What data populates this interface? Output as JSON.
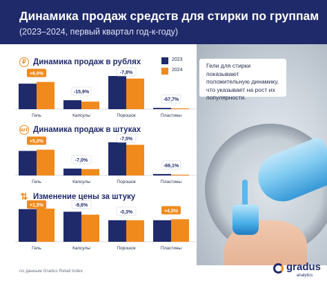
{
  "header": {
    "title": "Динамика продаж средств для стирки по группам",
    "subtitle": "(2023–2024, первый квартал год-к-году)"
  },
  "legend": {
    "items": [
      "2023",
      "2024"
    ]
  },
  "callout": {
    "text": "Гели для стирки показывают положительную динамику, что указывает на рост их популярности."
  },
  "colors": {
    "navy": "#1f2a6b",
    "orange": "#f08a1c",
    "label_orange": "#f08a1c",
    "label_navy": "#1f2a6b"
  },
  "chart_data": [
    {
      "type": "bar",
      "title": "Динамика продаж в рублях",
      "icon": "ruble-icon",
      "categories": [
        "Гель",
        "Капсулы",
        "Порошок",
        "Пластины"
      ],
      "series": [
        {
          "name": "2023",
          "values": [
            100,
            35,
            130,
            5
          ]
        },
        {
          "name": "2024",
          "values": [
            106.6,
            29.5,
            120,
            1.6
          ]
        }
      ],
      "changes": [
        "+6,6%",
        "-15,9%",
        "-7,8%",
        "-67,7%"
      ],
      "change_positive": [
        true,
        false,
        false,
        false
      ]
    },
    {
      "type": "bar",
      "title": "Динамика продаж в штуках",
      "icon": "pieces-icon",
      "categories": [
        "Гель",
        "Капсулы",
        "Порошок",
        "Пластины"
      ],
      "series": [
        {
          "name": "2023",
          "values": [
            100,
            28,
            135,
            6
          ]
        },
        {
          "name": "2024",
          "values": [
            105,
            26,
            125,
            1.9
          ]
        }
      ],
      "changes": [
        "+5,0%",
        "-7,0%",
        "-7,5%",
        "-69,1%"
      ],
      "change_positive": [
        true,
        false,
        false,
        false
      ]
    },
    {
      "type": "bar",
      "title": "Изменение цены за штуку",
      "icon": "arrows-icon",
      "categories": [
        "Гель",
        "Капсулы",
        "Порошок",
        "Пластины"
      ],
      "series": [
        {
          "name": "2023",
          "values": [
            100,
            92,
            66,
            66
          ]
        },
        {
          "name": "2024",
          "values": [
            101.5,
            83,
            66,
            69
          ]
        }
      ],
      "changes": [
        "+1,5%",
        "-9,6%",
        "-0,3%",
        "+4,5%"
      ],
      "change_positive": [
        true,
        false,
        false,
        true
      ]
    }
  ],
  "footer": {
    "note": "по данным Gradus Retail Index"
  },
  "brand": {
    "name": "gradus",
    "sub": "analytics"
  }
}
